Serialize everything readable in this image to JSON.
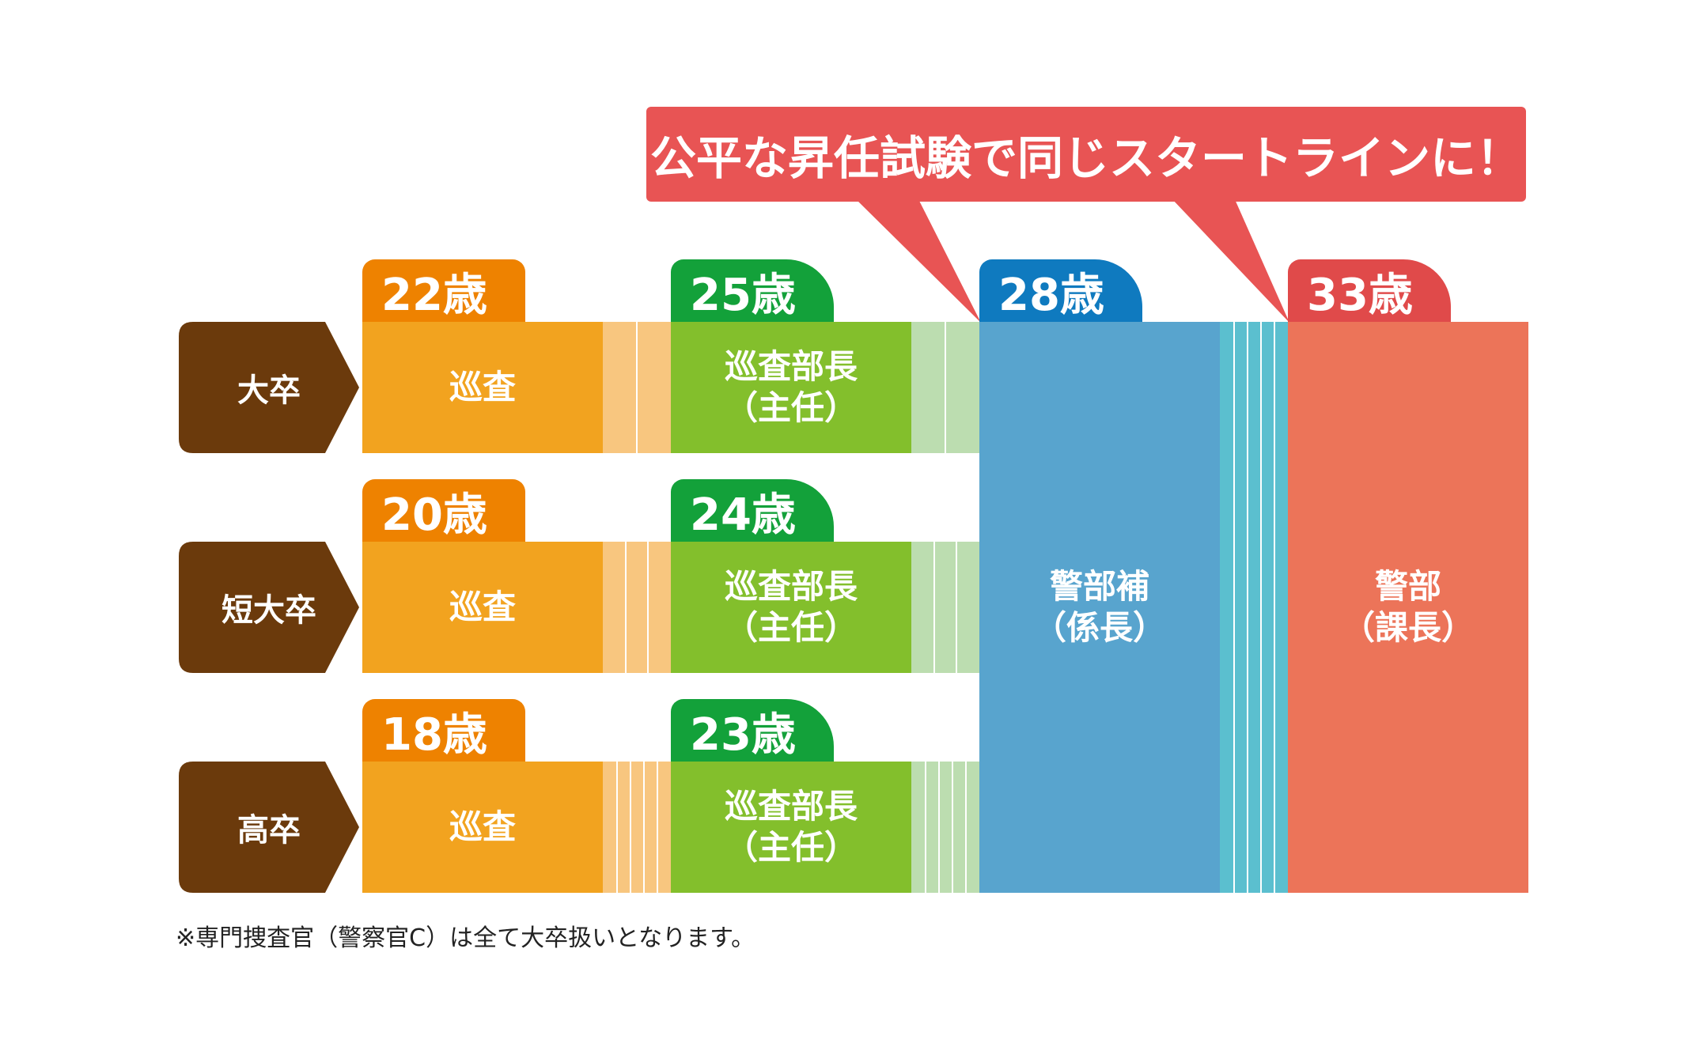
{
  "callout": {
    "text": "公平な昇任試験で同じスタートラインに！"
  },
  "rows": [
    {
      "label": "大卒",
      "start_age": "22歳",
      "promo_age": "25歳"
    },
    {
      "label": "短大卒",
      "start_age": "20歳",
      "promo_age": "24歳"
    },
    {
      "label": "高卒",
      "start_age": "18歳",
      "promo_age": "23歳"
    }
  ],
  "ranks": {
    "junsa": "巡査",
    "junsa_bucho": "巡査部長",
    "shunin": "（主任）",
    "keibuho": "警部補",
    "kakaricho": "（係長）",
    "keibu": "警部",
    "kacho": "（課長）"
  },
  "ages": {
    "keibuho": "28歳",
    "keibu": "33歳"
  },
  "colors": {
    "row_label": "#6b3a0c",
    "junsa": "#f2a31f",
    "junsa_bucho": "#83bf2c",
    "keibuho": "#58a4ce",
    "keibu": "#ec7459",
    "callout": "#e85454"
  },
  "note": "※専門捜査官（警察官C）は全て大卒扱いとなります。"
}
